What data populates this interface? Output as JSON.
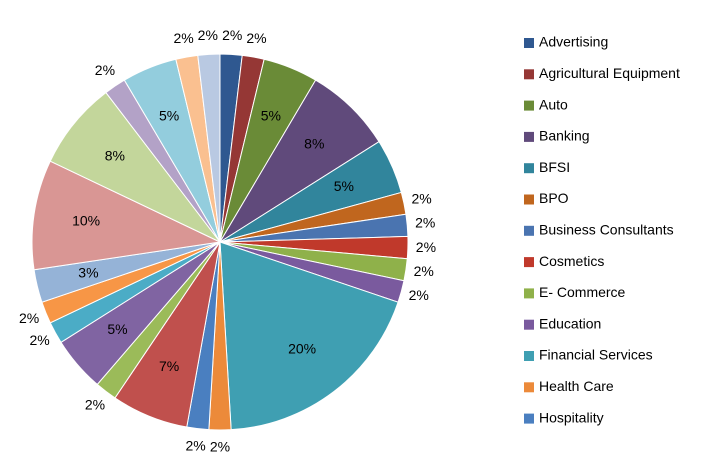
{
  "chart_data": {
    "type": "pie",
    "categories": [
      "Advertising",
      "Agricultural Equipment",
      "Auto",
      "Banking",
      "BFSI",
      "BPO",
      "Business Consultants",
      "Cosmetics",
      "E- Commerce",
      "Education",
      "Financial Services",
      "Health Care",
      "Hospitality",
      null,
      null,
      null,
      null,
      null,
      null,
      null,
      null,
      null,
      null,
      null,
      null
    ],
    "values": [
      2,
      2,
      5,
      8,
      5,
      2,
      2,
      2,
      2,
      2,
      20,
      2,
      2,
      7,
      2,
      5,
      2,
      2,
      3,
      10,
      8,
      2,
      5,
      2,
      2
    ],
    "value_labels": [
      "2%",
      "2%",
      "5%",
      "8%",
      "5%",
      "2%",
      "2%",
      "2%",
      "2%",
      "2%",
      "20%",
      "2%",
      "2%",
      "7%",
      "2%",
      "5%",
      "2%",
      "2%",
      "3%",
      "10%",
      "8%",
      "2%",
      "5%",
      "2%",
      "2%"
    ],
    "colors": [
      "#2f5890",
      "#953735",
      "#6a8b37",
      "#604a7b",
      "#31859c",
      "#c0661e",
      "#4a74b0",
      "#c0392b",
      "#8fb14a",
      "#7a5a9e",
      "#3f9fb2",
      "#ec8a3a",
      "#4a7fc0",
      "#c0504d",
      "#9bbb59",
      "#8064a2",
      "#4bacc6",
      "#f79646",
      "#95b3d7",
      "#d99694",
      "#c3d69b",
      "#b3a2c7",
      "#93cddd",
      "#fac090",
      "#b9c9e2"
    ]
  }
}
